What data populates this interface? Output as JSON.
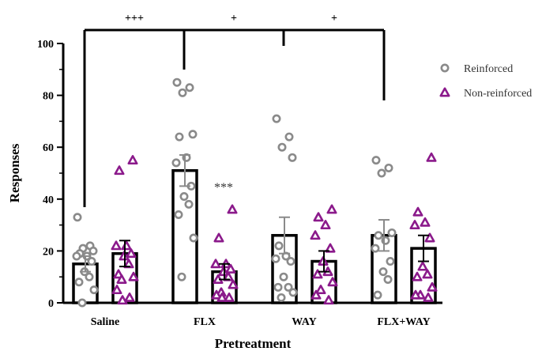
{
  "chart_data": {
    "type": "bar",
    "xlabel": "Pretreatment",
    "ylabel": "Responses",
    "ylim": [
      0,
      100
    ],
    "yticks": [
      0,
      20,
      40,
      60,
      80,
      100
    ],
    "categories": [
      "Saline",
      "FLX",
      "WAY",
      "FLX+WAY"
    ],
    "legend_position": "top-right",
    "series": [
      {
        "name": "Reinforced",
        "marker": "circle",
        "color": "#8a8a8a",
        "values": [
          15,
          51,
          26,
          26
        ],
        "errors": [
          3,
          6,
          7,
          6
        ],
        "points": [
          [
            33,
            22,
            21,
            20,
            19,
            18,
            18,
            16,
            12,
            10,
            8,
            5,
            0
          ],
          [
            85,
            83,
            81,
            65,
            64,
            56,
            54,
            45,
            41,
            38,
            34,
            25,
            10
          ],
          [
            71,
            64,
            60,
            56,
            22,
            18,
            17,
            16,
            10,
            6,
            6,
            4,
            2
          ],
          [
            55,
            52,
            50,
            27,
            26,
            24,
            21,
            16,
            12,
            9,
            3
          ]
        ]
      },
      {
        "name": "Non-reinforced",
        "marker": "triangle",
        "color": "#8b1a8b",
        "values": [
          19,
          12,
          16,
          21
        ],
        "errors": [
          5,
          3,
          4,
          5
        ],
        "points": [
          [
            55,
            51,
            22,
            22,
            19,
            18,
            15,
            11,
            10,
            9,
            5,
            2,
            1
          ],
          [
            36,
            25,
            15,
            15,
            13,
            12,
            10,
            9,
            7,
            4,
            3,
            2,
            2
          ],
          [
            36,
            33,
            30,
            26,
            21,
            16,
            12,
            11,
            8,
            5,
            3,
            1
          ],
          [
            56,
            35,
            31,
            30,
            25,
            14,
            11,
            10,
            6,
            3,
            3,
            2
          ]
        ]
      }
    ],
    "annotations": [
      {
        "text": "+++",
        "between": [
          "Saline",
          "FLX"
        ]
      },
      {
        "text": "+",
        "between": [
          "FLX",
          "WAY"
        ]
      },
      {
        "text": "+",
        "between": [
          "WAY",
          "FLX+WAY"
        ]
      },
      {
        "text": "***",
        "category": "FLX",
        "series": "Non-reinforced"
      }
    ]
  }
}
